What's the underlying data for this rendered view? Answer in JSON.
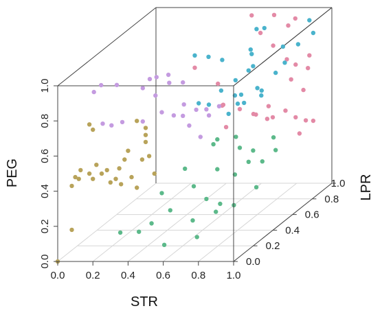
{
  "chart_data": {
    "type": "scatter",
    "subtype": "3d-scatter",
    "title": "",
    "xlabel": "STR",
    "ylabel": "LPR",
    "zlabel": "PEG",
    "xlim": [
      0,
      1
    ],
    "ylim": [
      0,
      1
    ],
    "zlim": [
      0,
      1
    ],
    "x_ticks": [
      "0.0",
      "0.2",
      "0.4",
      "0.6",
      "0.8",
      "1.0"
    ],
    "y_ticks": [
      "0.0",
      "0.2",
      "0.4",
      "0.6",
      "0.8",
      "1.0"
    ],
    "z_ticks": [
      "0.0",
      "0.2",
      "0.4",
      "0.6",
      "0.8",
      "1.0"
    ],
    "grid": "floor",
    "legend": "none",
    "colors": {
      "olive": "#b8a35a",
      "purple": "#c49be0",
      "teal": "#4ab3cc",
      "pink": "#e38aa6",
      "green": "#5cb98a"
    },
    "series": [
      {
        "color": "#b8a35a",
        "points": [
          [
            0.0,
            0.0,
            0.0
          ],
          [
            0.08,
            0.0,
            0.43
          ],
          [
            0.1,
            0.0,
            0.48
          ],
          [
            0.12,
            0.0,
            0.47
          ],
          [
            0.13,
            0.0,
            0.52
          ],
          [
            0.18,
            0.0,
            0.5
          ],
          [
            0.2,
            0.0,
            0.47
          ],
          [
            0.22,
            0.0,
            0.55
          ],
          [
            0.25,
            0.0,
            0.5
          ],
          [
            0.28,
            0.0,
            0.52
          ],
          [
            0.3,
            0.0,
            0.45
          ],
          [
            0.33,
            0.0,
            0.47
          ],
          [
            0.35,
            0.0,
            0.53
          ],
          [
            0.36,
            0.0,
            0.44
          ],
          [
            0.38,
            0.0,
            0.58
          ],
          [
            0.4,
            0.0,
            0.63
          ],
          [
            0.42,
            0.0,
            0.48
          ],
          [
            0.45,
            0.0,
            0.42
          ],
          [
            0.48,
            0.0,
            0.58
          ],
          [
            0.5,
            0.0,
            0.68
          ],
          [
            0.5,
            0.0,
            0.72
          ],
          [
            0.52,
            0.0,
            0.6
          ],
          [
            0.55,
            0.0,
            0.5
          ],
          [
            0.2,
            0.0,
            0.75
          ],
          [
            0.18,
            0.0,
            0.78
          ],
          [
            0.45,
            0.0,
            0.8
          ],
          [
            0.5,
            0.0,
            0.76
          ],
          [
            0.08,
            0.0,
            0.18
          ]
        ]
      },
      {
        "color": "#c49be0",
        "points": [
          [
            0.15,
            0.1,
            0.92
          ],
          [
            0.18,
            0.12,
            0.95
          ],
          [
            0.28,
            0.1,
            0.96
          ],
          [
            0.4,
            0.15,
            0.92
          ],
          [
            0.45,
            0.2,
            0.96
          ],
          [
            0.3,
            0.4,
            0.86
          ],
          [
            0.35,
            0.5,
            0.84
          ],
          [
            0.5,
            0.1,
            0.9
          ],
          [
            0.55,
            0.15,
            0.95
          ],
          [
            0.6,
            0.2,
            0.93
          ],
          [
            0.2,
            0.1,
            0.74
          ],
          [
            0.25,
            0.1,
            0.73
          ],
          [
            0.3,
            0.12,
            0.74
          ],
          [
            0.4,
            0.15,
            0.73
          ],
          [
            0.48,
            0.2,
            0.76
          ],
          [
            0.52,
            0.25,
            0.72
          ],
          [
            0.55,
            0.3,
            0.76
          ],
          [
            0.6,
            0.2,
            0.74
          ],
          [
            0.62,
            0.3,
            0.73
          ],
          [
            0.65,
            0.35,
            0.71
          ],
          [
            0.58,
            0.3,
            0.64
          ],
          [
            0.7,
            0.2,
            0.62
          ],
          [
            0.72,
            0.25,
            0.72
          ],
          [
            0.75,
            0.3,
            0.75
          ]
        ]
      },
      {
        "color": "#4ab3cc",
        "points": [
          [
            0.6,
            0.9,
            0.78
          ],
          [
            0.65,
            0.8,
            0.85
          ],
          [
            0.7,
            0.85,
            0.95
          ],
          [
            0.72,
            0.7,
            0.8
          ],
          [
            0.75,
            0.6,
            0.82
          ],
          [
            0.5,
            0.5,
            0.95
          ],
          [
            0.55,
            0.55,
            0.92
          ],
          [
            0.6,
            0.6,
            0.88
          ],
          [
            0.65,
            0.5,
            0.75
          ],
          [
            0.7,
            0.55,
            0.7
          ],
          [
            0.72,
            0.45,
            0.64
          ],
          [
            0.78,
            0.5,
            0.68
          ],
          [
            0.8,
            0.6,
            0.72
          ],
          [
            0.85,
            0.55,
            0.7
          ],
          [
            0.8,
            0.4,
            0.72
          ],
          [
            0.88,
            0.5,
            0.75
          ],
          [
            0.9,
            0.7,
            0.82
          ],
          [
            0.92,
            0.8,
            0.88
          ],
          [
            0.95,
            0.9,
            0.9
          ],
          [
            0.75,
            0.95,
            0.8
          ],
          [
            0.62,
            0.7,
            0.72
          ],
          [
            0.68,
            0.65,
            0.66
          ],
          [
            0.58,
            0.5,
            0.67
          ],
          [
            0.55,
            0.45,
            0.7
          ],
          [
            0.82,
            0.75,
            0.74
          ],
          [
            0.6,
            0.95,
            0.9
          ],
          [
            0.9,
            0.95,
            0.95
          ]
        ]
      },
      {
        "color": "#e38aa6",
        "points": [
          [
            0.6,
            0.9,
            1.0
          ],
          [
            0.7,
            0.95,
            0.98
          ],
          [
            0.75,
            0.85,
            0.85
          ],
          [
            0.8,
            0.9,
            0.75
          ],
          [
            0.85,
            0.9,
            0.72
          ],
          [
            0.88,
            0.8,
            0.68
          ],
          [
            0.9,
            0.95,
            0.75
          ],
          [
            0.92,
            0.9,
            0.7
          ],
          [
            0.95,
            0.8,
            0.62
          ],
          [
            0.7,
            0.6,
            0.6
          ],
          [
            0.75,
            0.65,
            0.55
          ],
          [
            0.78,
            0.75,
            0.55
          ],
          [
            0.8,
            0.7,
            0.5
          ],
          [
            0.82,
            0.85,
            0.48
          ],
          [
            0.85,
            0.9,
            0.42
          ],
          [
            0.88,
            0.95,
            0.38
          ],
          [
            0.9,
            0.85,
            0.35
          ],
          [
            0.95,
            0.9,
            0.4
          ],
          [
            0.6,
            0.6,
            0.62
          ],
          [
            0.55,
            0.7,
            0.58
          ],
          [
            0.65,
            0.55,
            0.52
          ],
          [
            0.68,
            0.8,
            0.48
          ],
          [
            0.72,
            0.9,
            0.42
          ],
          [
            0.5,
            0.5,
            0.88
          ],
          [
            0.52,
            0.7,
            0.7
          ],
          [
            0.65,
            0.9,
            0.9
          ],
          [
            0.78,
            0.95,
            0.92
          ],
          [
            0.82,
            0.95,
            0.96
          ]
        ]
      },
      {
        "color": "#5cb98a",
        "points": [
          [
            0.3,
            0.1,
            0.12
          ],
          [
            0.35,
            0.2,
            0.08
          ],
          [
            0.45,
            0.15,
            0.15
          ],
          [
            0.5,
            0.25,
            0.18
          ],
          [
            0.55,
            0.1,
            0.05
          ],
          [
            0.6,
            0.3,
            0.1
          ],
          [
            0.65,
            0.35,
            0.2
          ],
          [
            0.7,
            0.4,
            0.15
          ],
          [
            0.75,
            0.45,
            0.12
          ],
          [
            0.62,
            0.5,
            0.06
          ],
          [
            0.68,
            0.2,
            0.05
          ],
          [
            0.55,
            0.4,
            0.25
          ],
          [
            0.6,
            0.55,
            0.28
          ],
          [
            0.7,
            0.55,
            0.25
          ],
          [
            0.75,
            0.6,
            0.3
          ],
          [
            0.8,
            0.65,
            0.28
          ],
          [
            0.85,
            0.5,
            0.2
          ],
          [
            0.5,
            0.4,
            0.35
          ],
          [
            0.55,
            0.6,
            0.4
          ],
          [
            0.6,
            0.55,
            0.45
          ],
          [
            0.65,
            0.65,
            0.42
          ],
          [
            0.7,
            0.6,
            0.38
          ],
          [
            0.72,
            0.7,
            0.32
          ],
          [
            0.78,
            0.8,
            0.35
          ],
          [
            0.82,
            0.75,
            0.3
          ],
          [
            0.48,
            0.2,
            0.3
          ]
        ]
      }
    ]
  }
}
